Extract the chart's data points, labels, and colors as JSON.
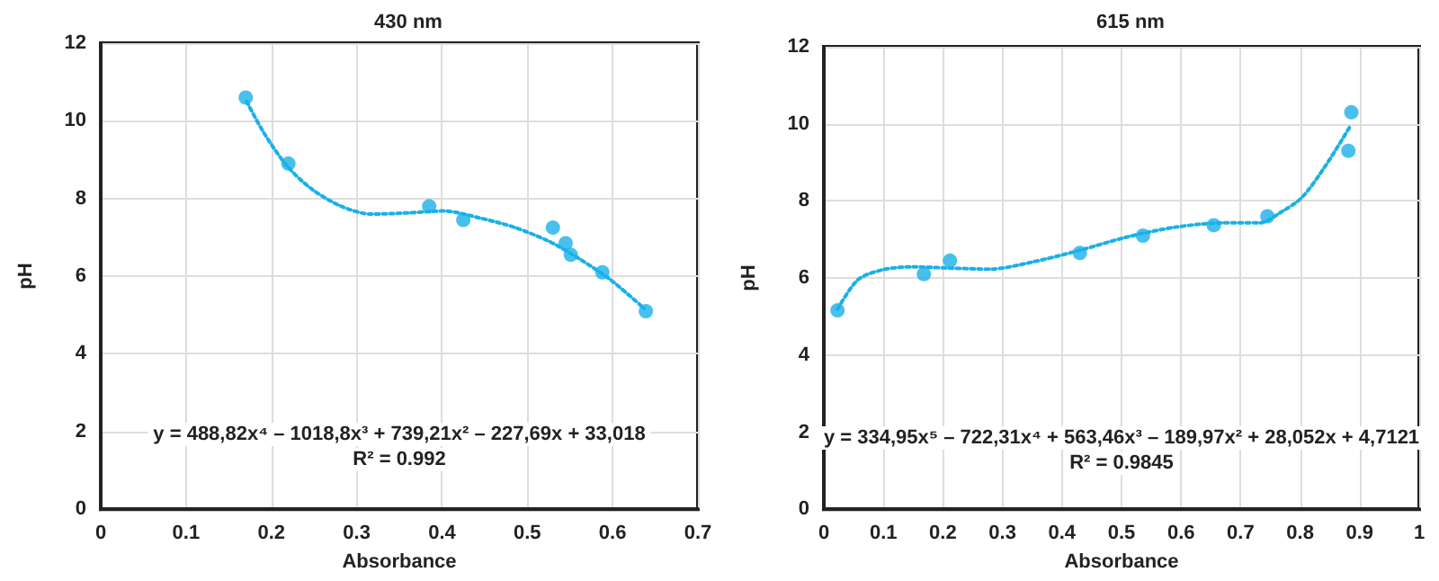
{
  "chart_data": [
    {
      "type": "scatter",
      "title": "430 nm",
      "xlabel": "Absorbance",
      "ylabel": "pH",
      "xlim": [
        0,
        0.7
      ],
      "xticks": [
        0,
        0.1,
        0.2,
        0.3,
        0.4,
        0.5,
        0.6,
        0.7
      ],
      "ylim": [
        0,
        12
      ],
      "yticks": [
        0,
        2,
        4,
        6,
        8,
        10,
        12
      ],
      "grid": true,
      "marker": "circle",
      "annotations": [
        "y = 488,82x⁴ – 1018,8x³ + 739,21x² – 227,69x + 33,018",
        "R² = 0.992"
      ],
      "series": [
        {
          "color": "#1ab0e8",
          "x": [
            0.17,
            0.22,
            0.385,
            0.425,
            0.53,
            0.545,
            0.551,
            0.588,
            0.639
          ],
          "values": [
            10.6,
            8.9,
            7.8,
            7.45,
            7.25,
            6.85,
            6.55,
            6.1,
            5.1
          ]
        },
        {
          "type": "line",
          "color": "#1ab0e8",
          "line_style": "dotted",
          "marker": "none",
          "x": [
            0.171,
            0.191,
            0.218,
            0.247,
            0.282,
            0.317,
            0.36,
            0.402,
            0.444,
            0.486,
            0.528,
            0.563,
            0.598,
            0.637
          ],
          "values": [
            10.5,
            9.7,
            8.85,
            8.25,
            7.8,
            7.6,
            7.63,
            7.68,
            7.5,
            7.25,
            6.87,
            6.42,
            5.9,
            5.17
          ]
        }
      ]
    },
    {
      "type": "scatter",
      "title": "615 nm",
      "xlabel": "Absorbance",
      "ylabel": "pH",
      "xlim": [
        0,
        1
      ],
      "xticks": [
        0,
        0.1,
        0.2,
        0.3,
        0.4,
        0.5,
        0.6,
        0.7,
        0.8,
        0.9,
        1
      ],
      "ylim": [
        0,
        12
      ],
      "yticks": [
        0,
        2,
        4,
        6,
        8,
        10,
        12
      ],
      "grid": true,
      "marker": "circle",
      "annotations": [
        "y = 334,95x⁵ – 722,31x⁴ + 563,46x³ – 189,97x² + 28,052x + 4,7121",
        "R² = 0.9845"
      ],
      "series": [
        {
          "color": "#1ab0e8",
          "x": [
            0.023,
            0.168,
            0.212,
            0.43,
            0.536,
            0.655,
            0.745,
            0.881,
            0.886
          ],
          "values": [
            5.16,
            6.1,
            6.45,
            6.65,
            7.1,
            7.37,
            7.6,
            9.3,
            10.3
          ]
        },
        {
          "type": "line",
          "color": "#1ab0e8",
          "line_style": "dotted",
          "marker": "none",
          "x": [
            0.023,
            0.057,
            0.098,
            0.148,
            0.208,
            0.279,
            0.349,
            0.43,
            0.511,
            0.591,
            0.672,
            0.732,
            0.767,
            0.803,
            0.843,
            0.883
          ],
          "values": [
            5.19,
            5.95,
            6.21,
            6.29,
            6.26,
            6.23,
            6.41,
            6.72,
            7.07,
            7.32,
            7.43,
            7.43,
            7.7,
            8.09,
            8.92,
            9.91
          ]
        }
      ]
    }
  ]
}
